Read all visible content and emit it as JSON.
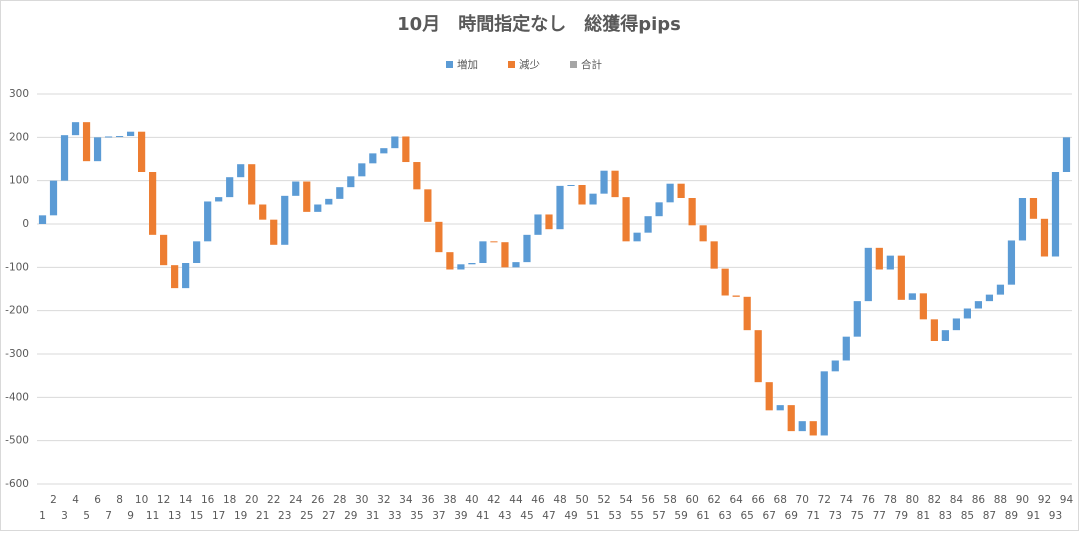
{
  "chart_data": {
    "type": "waterfall",
    "title": "10月　時間指定なし　総獲得pips",
    "categories": [
      1,
      2,
      3,
      4,
      5,
      6,
      7,
      8,
      9,
      10,
      11,
      12,
      13,
      14,
      15,
      16,
      17,
      18,
      19,
      20,
      21,
      22,
      23,
      24,
      25,
      26,
      27,
      28,
      29,
      30,
      31,
      32,
      33,
      34,
      35,
      36,
      37,
      38,
      39,
      40,
      41,
      42,
      43,
      44,
      45,
      46,
      47,
      48,
      49,
      50,
      51,
      52,
      53,
      54,
      55,
      56,
      57,
      58,
      59,
      60,
      61,
      62,
      63,
      64,
      65,
      66,
      67,
      68,
      69,
      70,
      71,
      72,
      73,
      74,
      75,
      76,
      77,
      78,
      79,
      80,
      81,
      82,
      83,
      84,
      85,
      86,
      87,
      88,
      89,
      90,
      91,
      92,
      93,
      94
    ],
    "values": [
      20,
      80,
      105,
      30,
      -90,
      55,
      2,
      1,
      10,
      -93,
      -145,
      -70,
      -53,
      58,
      50,
      92,
      10,
      46,
      30,
      -93,
      -35,
      -58,
      113,
      33,
      -70,
      17,
      13,
      27,
      25,
      30,
      23,
      12,
      27,
      -59,
      -63,
      -75,
      -70,
      -40,
      12,
      3,
      50,
      -2,
      -58,
      12,
      63,
      47,
      -34,
      100,
      2,
      -45,
      25,
      53,
      -61,
      -102,
      20,
      38,
      32,
      43,
      -33,
      -63,
      -37,
      -63,
      -62,
      -3,
      -77,
      -120,
      -65,
      12,
      -60,
      23,
      -33,
      148,
      25,
      55,
      82,
      123,
      -50,
      32,
      -102,
      15,
      -60,
      -50,
      25,
      27,
      23,
      17,
      15,
      23,
      102,
      98,
      -48,
      -87,
      195,
      80
    ],
    "legend": [
      {
        "name": "増加",
        "color": "#5b9bd5"
      },
      {
        "name": "減少",
        "color": "#ed7d31"
      },
      {
        "name": "合計",
        "color": "#a5a5a5"
      }
    ],
    "ylim": [
      -600,
      300
    ],
    "yticks": [
      -600,
      -500,
      -400,
      -300,
      -200,
      -100,
      0,
      100,
      200,
      300
    ],
    "grid": true,
    "legend_position": "top"
  }
}
